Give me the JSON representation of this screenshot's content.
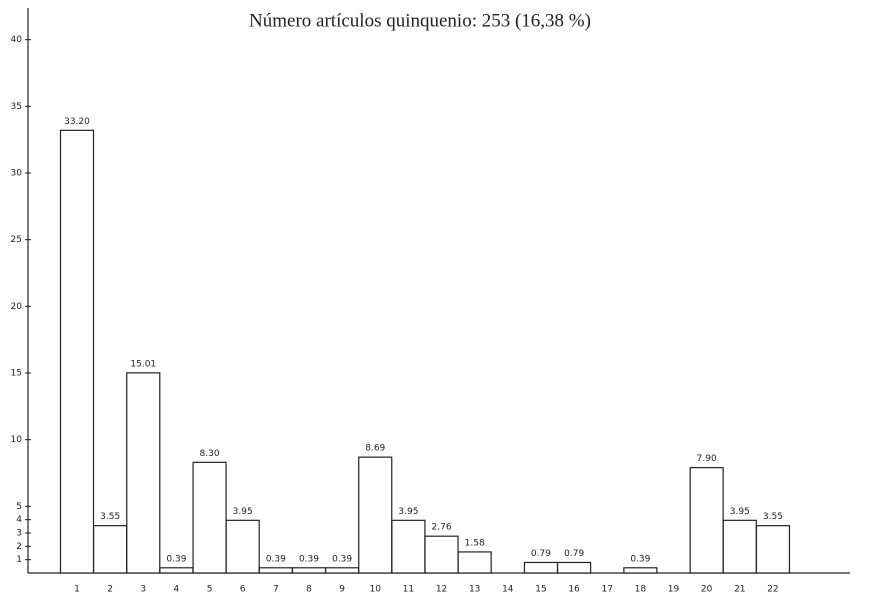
{
  "chart_data": {
    "type": "bar",
    "title": "Número artículos quinquenio: 253 (16,38 %)",
    "categories": [
      "1",
      "2",
      "3",
      "4",
      "5",
      "6",
      "7",
      "8",
      "9",
      "10",
      "11",
      "12",
      "13",
      "14",
      "15",
      "16",
      "17",
      "18",
      "19",
      "20",
      "21",
      "22"
    ],
    "values": [
      33.2,
      3.55,
      15.01,
      0.39,
      8.3,
      3.95,
      0.39,
      0.39,
      0.39,
      8.69,
      3.95,
      2.76,
      1.58,
      null,
      0.79,
      0.79,
      null,
      0.39,
      null,
      7.9,
      3.95,
      3.55
    ],
    "value_labels": [
      "33.20",
      "3.55",
      "15.01",
      "0.39",
      "8.30",
      "3.95",
      "0.39",
      "0.39",
      "0.39",
      "8.69",
      "3.95",
      "2.76",
      "1.58",
      null,
      "0.79",
      "0.79",
      null,
      "0.39",
      null,
      "7.90",
      "3.95",
      "3.55"
    ],
    "color": "#ffffff",
    "ylim": [
      0,
      42
    ],
    "yticks": [
      1,
      2,
      3,
      4,
      5,
      10,
      15,
      20,
      25,
      30,
      35,
      40
    ],
    "grid": false
  }
}
